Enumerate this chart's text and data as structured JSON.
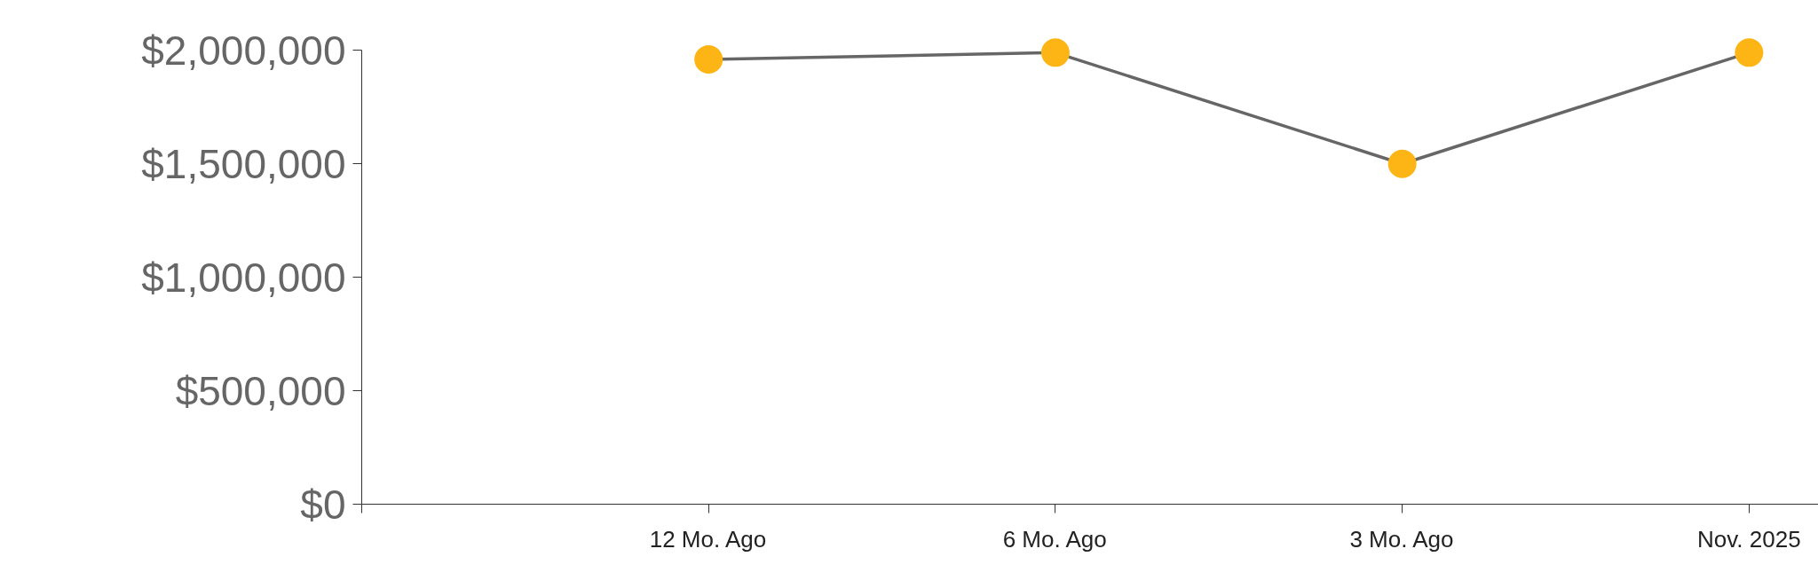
{
  "chart_data": {
    "type": "line",
    "categories": [
      null,
      "12 Mo. Ago",
      "6 Mo. Ago",
      "3 Mo. Ago",
      "Nov. 2025"
    ],
    "series": [
      {
        "color": "#666666",
        "colors": [
          null,
          "#fdb515",
          "#fdb515",
          "#fdb515",
          "#fdb515"
        ],
        "values": [
          null,
          1960000,
          1990000,
          1500000,
          1990000
        ]
      }
    ],
    "ylim": [
      0,
      2000000
    ],
    "yticks": [
      {
        "value": 0,
        "label": "$0"
      },
      {
        "value": 500000,
        "label": "$500,000"
      },
      {
        "value": 1000000,
        "label": "$1,000,000"
      },
      {
        "value": 1500000,
        "label": "$1,500,000"
      },
      {
        "value": 2000000,
        "label": "$2,000,000"
      }
    ],
    "marker": "circle",
    "line_style": "solid"
  }
}
